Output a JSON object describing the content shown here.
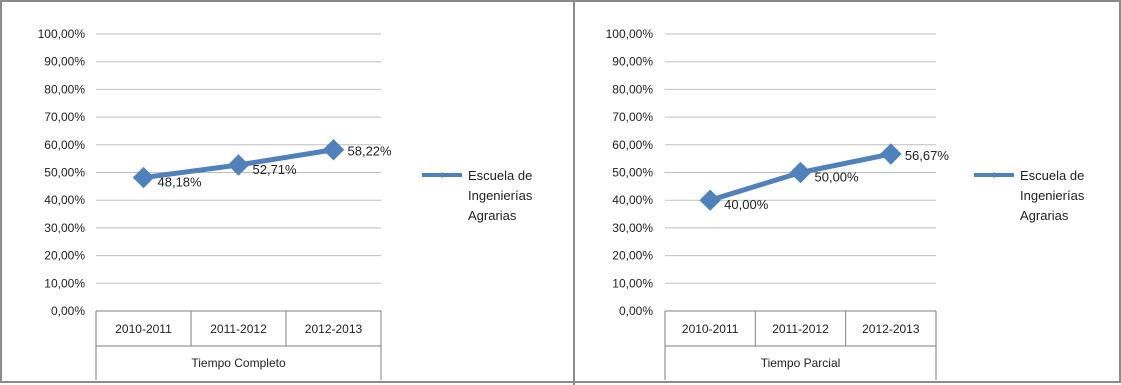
{
  "chart_data": [
    {
      "type": "line",
      "categories": [
        "2010-2011",
        "2011-2012",
        "2012-2013"
      ],
      "group_label": "Tiempo Completo",
      "series": [
        {
          "name": "Escuela de Ingenierías Agrarias",
          "values": [
            48.18,
            52.71,
            58.22
          ],
          "labels": [
            "48,18%",
            "52,71%",
            "58,22%"
          ],
          "color": "#4f81bd"
        }
      ],
      "yticks": [
        "0,00%",
        "10,00%",
        "20,00%",
        "30,00%",
        "40,00%",
        "50,00%",
        "60,00%",
        "70,00%",
        "80,00%",
        "90,00%",
        "100,00%"
      ],
      "legend_lines": [
        "Escuela de",
        "Ingenierías",
        "Agrarias"
      ],
      "ylim": [
        0,
        100
      ],
      "grid": true,
      "legend_position": "right",
      "marker": "diamond"
    },
    {
      "type": "line",
      "categories": [
        "2010-2011",
        "2011-2012",
        "2012-2013"
      ],
      "group_label": "Tiempo Parcial",
      "series": [
        {
          "name": "Escuela de Ingenierías Agrarias",
          "values": [
            40.0,
            50.0,
            56.67
          ],
          "labels": [
            "40,00%",
            "50,00%",
            "56,67%"
          ],
          "color": "#4f81bd"
        }
      ],
      "yticks": [
        "0,00%",
        "10,00%",
        "20,00%",
        "30,00%",
        "40,00%",
        "50,00%",
        "60,00%",
        "70,00%",
        "80,00%",
        "90,00%",
        "100,00%"
      ],
      "legend_lines": [
        "Escuela de",
        "Ingenierías",
        "Agrarias"
      ],
      "ylim": [
        0,
        100
      ],
      "grid": true,
      "legend_position": "right",
      "marker": "diamond"
    }
  ],
  "colors": {
    "grid": "#bfbfbf",
    "axis": "#7f7f7f",
    "frame": "#8a8a8a"
  }
}
